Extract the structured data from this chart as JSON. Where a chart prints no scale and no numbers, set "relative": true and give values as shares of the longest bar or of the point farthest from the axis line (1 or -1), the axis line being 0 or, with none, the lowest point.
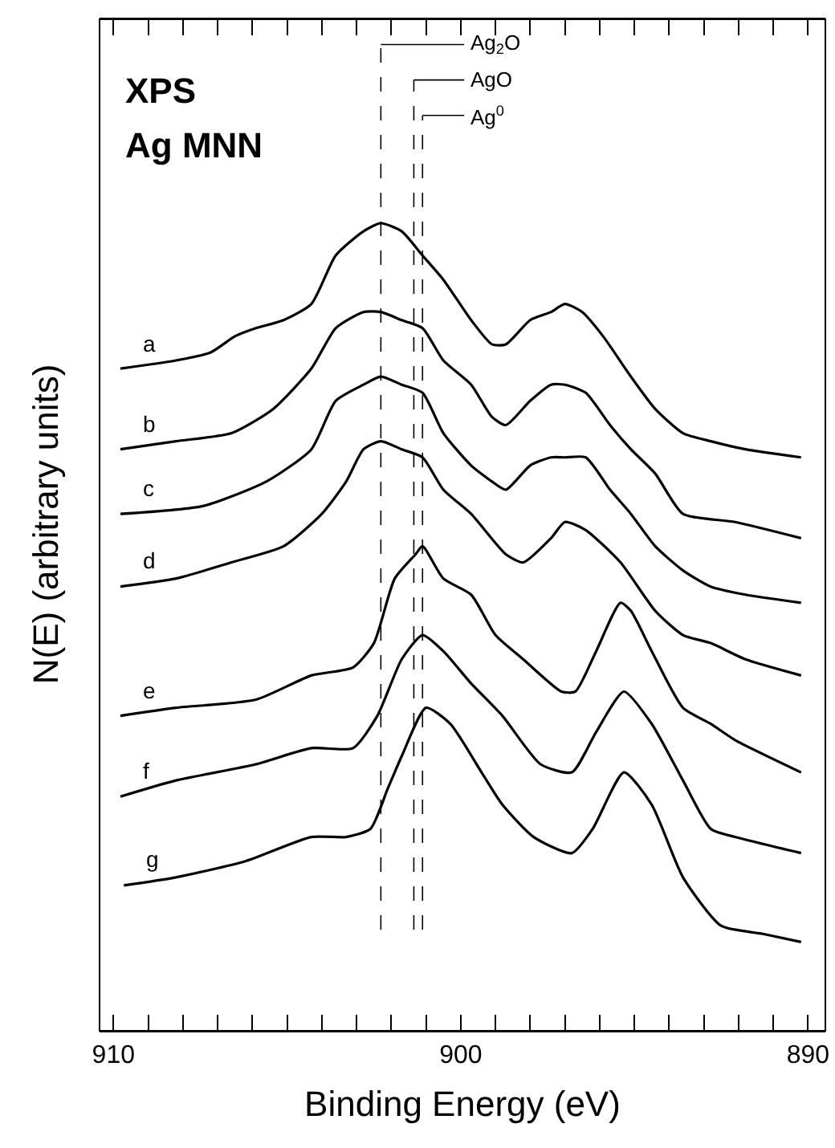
{
  "chart_data": {
    "type": "line",
    "title": "XPS",
    "subtitle": "Ag MNN",
    "xlabel": "Binding Energy (eV)",
    "ylabel": "N(E) (arbitrary units)",
    "relative": true,
    "legend": false,
    "marker": "none",
    "line_style": "solid",
    "xlim": [
      910.4,
      889.5
    ],
    "xticks": [
      910,
      {
        "value": 909,
        "label": null
      },
      {
        "value": 908,
        "label": null
      },
      {
        "value": 907,
        "label": null
      },
      {
        "value": 906,
        "label": null
      },
      {
        "value": 905,
        "label": null
      },
      {
        "value": 904,
        "label": null
      },
      {
        "value": 903,
        "label": null
      },
      {
        "value": 902,
        "label": null
      },
      {
        "value": 901,
        "label": null
      },
      900,
      {
        "value": 899,
        "label": null
      },
      {
        "value": 898,
        "label": null
      },
      {
        "value": 897,
        "label": null
      },
      {
        "value": 896,
        "label": null
      },
      {
        "value": 895,
        "label": null
      },
      {
        "value": 894,
        "label": null
      },
      {
        "value": 893,
        "label": null
      },
      {
        "value": 892,
        "label": null
      },
      {
        "value": 891,
        "label": null
      },
      890
    ],
    "tick_labels": "x",
    "ref_lines": [
      {
        "axis": "x",
        "value": 902.3,
        "label": "Ag$_{2}$O",
        "color": "#000000",
        "line_style": "dashed"
      },
      {
        "axis": "x",
        "value": 901.35,
        "label": "AgO",
        "color": "#000000",
        "line_style": "dashed"
      },
      {
        "axis": "x",
        "value": 901.1,
        "label": "Ag$^{0}$",
        "color": "#000000",
        "line_style": "dashed"
      }
    ],
    "series": [
      {
        "name": "a",
        "color": "#000000",
        "x": [
          909.8,
          908.2,
          907.2,
          906.5,
          905.9,
          905.1,
          904.3,
          903.6,
          902.8,
          902.3,
          901.7,
          901.1,
          900.5,
          899.7,
          899.1,
          898.7,
          898.0,
          897.4,
          897.0,
          896.5,
          895.9,
          895.1,
          894.4,
          893.6,
          892.8,
          891.8,
          890.2
        ],
        "values": [
          0.82,
          0.83,
          0.84,
          0.86,
          0.87,
          0.88,
          0.9,
          0.96,
          0.99,
          1.0,
          0.99,
          0.96,
          0.93,
          0.88,
          0.85,
          0.85,
          0.88,
          0.89,
          0.9,
          0.89,
          0.86,
          0.81,
          0.77,
          0.74,
          0.73,
          0.72,
          0.71
        ]
      },
      {
        "name": "b",
        "color": "#000000",
        "x": [
          909.8,
          908.2,
          906.6,
          905.4,
          904.3,
          903.6,
          902.8,
          902.3,
          901.7,
          901.1,
          900.5,
          899.7,
          899.1,
          898.7,
          898.0,
          897.4,
          897.0,
          896.4,
          895.7,
          895.1,
          894.4,
          893.6,
          892.1,
          890.2
        ],
        "values": [
          0.72,
          0.73,
          0.74,
          0.77,
          0.82,
          0.87,
          0.89,
          0.89,
          0.88,
          0.87,
          0.83,
          0.8,
          0.76,
          0.75,
          0.78,
          0.8,
          0.8,
          0.79,
          0.75,
          0.72,
          0.69,
          0.64,
          0.63,
          0.61
        ]
      },
      {
        "name": "c",
        "color": "#000000",
        "x": [
          909.8,
          907.4,
          905.6,
          904.3,
          903.6,
          902.8,
          902.3,
          901.7,
          901.1,
          900.5,
          899.7,
          899.1,
          898.7,
          898.0,
          897.4,
          897.0,
          896.4,
          895.7,
          895.1,
          894.4,
          893.6,
          892.8,
          891.8,
          890.2
        ],
        "values": [
          0.64,
          0.65,
          0.68,
          0.72,
          0.78,
          0.8,
          0.81,
          0.8,
          0.79,
          0.74,
          0.7,
          0.68,
          0.67,
          0.7,
          0.71,
          0.71,
          0.71,
          0.67,
          0.64,
          0.6,
          0.57,
          0.55,
          0.54,
          0.53
        ]
      },
      {
        "name": "d",
        "color": "#000000",
        "x": [
          909.8,
          908.2,
          906.6,
          905.1,
          904.0,
          903.3,
          902.8,
          902.3,
          901.7,
          901.1,
          900.5,
          899.7,
          898.7,
          898.2,
          897.4,
          897.0,
          896.4,
          895.4,
          894.4,
          893.6,
          892.8,
          891.8,
          890.2
        ],
        "values": [
          0.55,
          0.56,
          0.58,
          0.6,
          0.64,
          0.68,
          0.72,
          0.73,
          0.72,
          0.71,
          0.67,
          0.64,
          0.59,
          0.58,
          0.61,
          0.63,
          0.62,
          0.58,
          0.52,
          0.49,
          0.48,
          0.46,
          0.44
        ]
      },
      {
        "name": "e",
        "color": "#000000",
        "x": [
          909.8,
          908.2,
          905.9,
          904.3,
          903.1,
          902.5,
          901.9,
          901.3,
          901.1,
          900.5,
          899.7,
          899.0,
          898.2,
          897.1,
          896.7,
          896.1,
          895.4,
          895.1,
          894.5,
          893.6,
          892.8,
          892.1,
          890.2
        ],
        "values": [
          0.39,
          0.4,
          0.41,
          0.44,
          0.45,
          0.48,
          0.56,
          0.59,
          0.6,
          0.56,
          0.54,
          0.49,
          0.46,
          0.42,
          0.42,
          0.47,
          0.53,
          0.52,
          0.47,
          0.4,
          0.38,
          0.36,
          0.32
        ]
      },
      {
        "name": "f",
        "color": "#000000",
        "x": [
          909.8,
          908.2,
          905.9,
          904.3,
          903.1,
          902.4,
          901.7,
          901.1,
          900.5,
          899.7,
          898.8,
          897.7,
          896.8,
          896.1,
          895.3,
          894.5,
          893.6,
          892.8,
          892.1,
          890.2
        ],
        "values": [
          0.29,
          0.31,
          0.33,
          0.35,
          0.35,
          0.39,
          0.46,
          0.49,
          0.47,
          0.43,
          0.39,
          0.33,
          0.32,
          0.37,
          0.42,
          0.38,
          0.31,
          0.25,
          0.24,
          0.22
        ]
      },
      {
        "name": "g",
        "color": "#000000",
        "x": [
          909.7,
          908.2,
          906.2,
          904.3,
          903.3,
          902.6,
          902.1,
          901.7,
          901.0,
          900.3,
          899.4,
          898.8,
          897.9,
          896.8,
          896.2,
          895.3,
          894.5,
          893.6,
          892.5,
          891.3,
          890.2
        ],
        "values": [
          0.18,
          0.19,
          0.21,
          0.24,
          0.24,
          0.25,
          0.3,
          0.34,
          0.4,
          0.38,
          0.32,
          0.28,
          0.24,
          0.22,
          0.25,
          0.32,
          0.28,
          0.19,
          0.13,
          0.12,
          0.11
        ]
      }
    ]
  }
}
